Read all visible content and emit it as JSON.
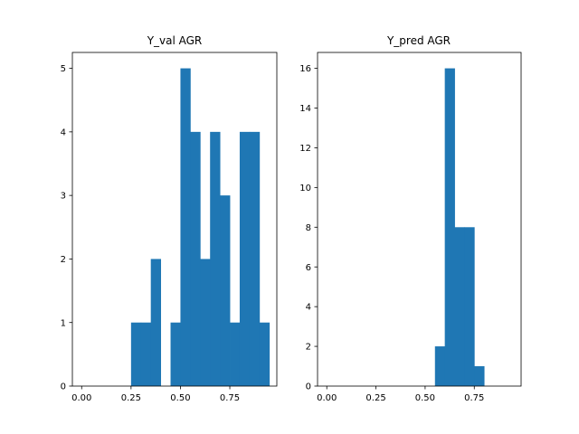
{
  "colors": {
    "bar": "#1f77b4",
    "axis": "#000000",
    "background": "#ffffff"
  },
  "chart_data": [
    {
      "type": "bar",
      "title": "Y_val AGR",
      "xlabel": "",
      "ylabel": "",
      "xlim": [
        -0.047,
        0.988
      ],
      "ylim": [
        0,
        5.25
      ],
      "xticks": [
        0,
        0.25,
        0.5,
        0.75
      ],
      "xtick_labels": [
        "0.00",
        "0.25",
        "0.50",
        "0.75"
      ],
      "yticks": [
        0,
        1,
        2,
        3,
        4,
        5
      ],
      "ytick_labels": [
        "0",
        "1",
        "2",
        "3",
        "4",
        "5"
      ],
      "grid": false,
      "bins": [
        {
          "x0": 0.25,
          "x1": 0.3,
          "count": 1
        },
        {
          "x0": 0.3,
          "x1": 0.35,
          "count": 1
        },
        {
          "x0": 0.35,
          "x1": 0.4,
          "count": 2
        },
        {
          "x0": 0.45,
          "x1": 0.5,
          "count": 1
        },
        {
          "x0": 0.5,
          "x1": 0.55,
          "count": 5
        },
        {
          "x0": 0.55,
          "x1": 0.6,
          "count": 4
        },
        {
          "x0": 0.6,
          "x1": 0.65,
          "count": 2
        },
        {
          "x0": 0.65,
          "x1": 0.7,
          "count": 4
        },
        {
          "x0": 0.7,
          "x1": 0.75,
          "count": 3
        },
        {
          "x0": 0.75,
          "x1": 0.8,
          "count": 1
        },
        {
          "x0": 0.8,
          "x1": 0.85,
          "count": 4
        },
        {
          "x0": 0.85,
          "x1": 0.9,
          "count": 4
        },
        {
          "x0": 0.9,
          "x1": 0.95,
          "count": 1
        }
      ]
    },
    {
      "type": "bar",
      "title": "Y_pred AGR",
      "xlabel": "",
      "ylabel": "",
      "xlim": [
        -0.047,
        0.988
      ],
      "ylim": [
        0,
        16.8
      ],
      "xticks": [
        0,
        0.25,
        0.5,
        0.75
      ],
      "xtick_labels": [
        "0.00",
        "0.25",
        "0.50",
        "0.75"
      ],
      "yticks": [
        0,
        2,
        4,
        6,
        8,
        10,
        12,
        14,
        16
      ],
      "ytick_labels": [
        "0",
        "2",
        "4",
        "6",
        "8",
        "10",
        "12",
        "14",
        "16"
      ],
      "grid": false,
      "bins": [
        {
          "x0": 0.55,
          "x1": 0.6,
          "count": 2
        },
        {
          "x0": 0.6,
          "x1": 0.65,
          "count": 16
        },
        {
          "x0": 0.65,
          "x1": 0.7,
          "count": 8
        },
        {
          "x0": 0.7,
          "x1": 0.75,
          "count": 8
        },
        {
          "x0": 0.75,
          "x1": 0.8,
          "count": 1
        }
      ]
    }
  ]
}
